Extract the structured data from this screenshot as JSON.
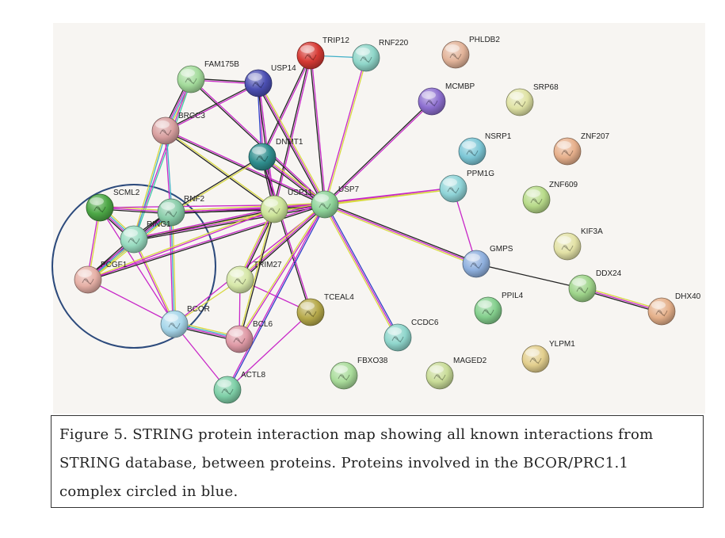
{
  "diagram": {
    "nodes": [
      {
        "id": "TRIP12",
        "label": "TRIP12",
        "color": "#d63a34"
      },
      {
        "id": "RNF220",
        "label": "RNF220",
        "color": "#8fd6c9"
      },
      {
        "id": "PHLDB2",
        "label": "PHLDB2",
        "color": "#e3b49a"
      },
      {
        "id": "FAM175B",
        "label": "FAM175B",
        "color": "#a4dc9c"
      },
      {
        "id": "USP14",
        "label": "USP14",
        "color": "#4b4fb2"
      },
      {
        "id": "MCMBP",
        "label": "MCMBP",
        "color": "#8d6fd0"
      },
      {
        "id": "SRP68",
        "label": "SRP68",
        "color": "#e0e3a5"
      },
      {
        "id": "BRCC3",
        "label": "BRCC3",
        "color": "#d9a0a0"
      },
      {
        "id": "DNMT1",
        "label": "DNMT1",
        "color": "#2f8e8e"
      },
      {
        "id": "NSRP1",
        "label": "NSRP1",
        "color": "#7dc7d6"
      },
      {
        "id": "ZNF207",
        "label": "ZNF207",
        "color": "#e7b08c"
      },
      {
        "id": "PPM1G",
        "label": "PPM1G",
        "color": "#8fd4d8"
      },
      {
        "id": "ZNF609",
        "label": "ZNF609",
        "color": "#b8db8a"
      },
      {
        "id": "SCML2",
        "label": "SCML2",
        "color": "#4da846"
      },
      {
        "id": "RNF2",
        "label": "RNF2",
        "color": "#88cca8"
      },
      {
        "id": "USP11",
        "label": "USP11",
        "color": "#cde59a"
      },
      {
        "id": "USP7",
        "label": "USP7",
        "color": "#8fd49a"
      },
      {
        "id": "RING1",
        "label": "RING1",
        "color": "#98dcc0"
      },
      {
        "id": "KIF3A",
        "label": "KIF3A",
        "color": "#e3e2a6"
      },
      {
        "id": "GMPS",
        "label": "GMPS",
        "color": "#8fb0de"
      },
      {
        "id": "PCGF1",
        "label": "PCGF1",
        "color": "#e6b0a6"
      },
      {
        "id": "TRIM27",
        "label": "TRIM27",
        "color": "#d7e8a9"
      },
      {
        "id": "DDX24",
        "label": "DDX24",
        "color": "#9ed48a"
      },
      {
        "id": "TCEAL4",
        "label": "TCEAL4",
        "color": "#b6a94a"
      },
      {
        "id": "DHX40",
        "label": "DHX40",
        "color": "#e5b08a"
      },
      {
        "id": "PPIL4",
        "label": "PPIL4",
        "color": "#85d08e"
      },
      {
        "id": "BCOR",
        "label": "BCOR",
        "color": "#a6d6ea"
      },
      {
        "id": "CCDC6",
        "label": "CCDC6",
        "color": "#8fd6cc"
      },
      {
        "id": "BCL6",
        "label": "BCL6",
        "color": "#df9aa6"
      },
      {
        "id": "YLPM1",
        "label": "YLPM1",
        "color": "#e3cf8e"
      },
      {
        "id": "FBXO38",
        "label": "FBXO38",
        "color": "#a9dc9a"
      },
      {
        "id": "MAGED2",
        "label": "MAGED2",
        "color": "#c9dc98"
      },
      {
        "id": "ACTL8",
        "label": "ACTL8",
        "color": "#7fd0a8"
      }
    ],
    "edges": [
      {
        "source": "TRIP12",
        "target": "RNF220",
        "colors": [
          "#40b0c8"
        ]
      },
      {
        "source": "TRIP12",
        "target": "USP7",
        "colors": [
          "#c828c8",
          "#222222"
        ]
      },
      {
        "source": "TRIP12",
        "target": "USP11",
        "colors": [
          "#c828c8",
          "#222222"
        ]
      },
      {
        "source": "TRIP12",
        "target": "DNMT1",
        "colors": [
          "#c828c8",
          "#222222"
        ]
      },
      {
        "source": "RNF220",
        "target": "USP7",
        "colors": [
          "#d8d840",
          "#c828c8"
        ]
      },
      {
        "source": "USP14",
        "target": "BRCC3",
        "colors": [
          "#c828c8",
          "#222222"
        ]
      },
      {
        "source": "USP14",
        "target": "DNMT1",
        "colors": [
          "#c828c8",
          "#3040c8"
        ]
      },
      {
        "source": "USP14",
        "target": "USP7",
        "colors": [
          "#d8d840",
          "#c828c8",
          "#222222"
        ]
      },
      {
        "source": "USP14",
        "target": "USP11",
        "colors": [
          "#c828c8",
          "#222222"
        ]
      },
      {
        "source": "USP14",
        "target": "FAM175B",
        "colors": [
          "#c828c8",
          "#222222"
        ]
      },
      {
        "source": "FAM175B",
        "target": "BRCC3",
        "colors": [
          "#d8d840",
          "#40b0c8",
          "#c828c8",
          "#222222"
        ]
      },
      {
        "source": "FAM175B",
        "target": "USP7",
        "colors": [
          "#c828c8",
          "#222222"
        ]
      },
      {
        "source": "FAM175B",
        "target": "RING1",
        "colors": [
          "#40c8a8",
          "#c828c8"
        ]
      },
      {
        "source": "BRCC3",
        "target": "USP11",
        "colors": [
          "#d8d840",
          "#222222"
        ]
      },
      {
        "source": "BRCC3",
        "target": "USP7",
        "colors": [
          "#c828c8",
          "#222222"
        ]
      },
      {
        "source": "BRCC3",
        "target": "RNF2",
        "colors": [
          "#40b0c8",
          "#c828c8"
        ]
      },
      {
        "source": "BRCC3",
        "target": "RING1",
        "colors": [
          "#40b0c8",
          "#d8d840"
        ]
      },
      {
        "source": "DNMT1",
        "target": "USP7",
        "colors": [
          "#d8d840",
          "#c828c8",
          "#222222"
        ]
      },
      {
        "source": "DNMT1",
        "target": "USP11",
        "colors": [
          "#c828c8",
          "#222222"
        ]
      },
      {
        "source": "DNMT1",
        "target": "RNF2",
        "colors": [
          "#d8d840",
          "#222222"
        ]
      },
      {
        "source": "DNMT1",
        "target": "TCEAL4",
        "colors": [
          "#c828c8",
          "#222222"
        ]
      },
      {
        "source": "MCMBP",
        "target": "USP7",
        "colors": [
          "#c828c8",
          "#222222"
        ]
      },
      {
        "source": "PPM1G",
        "target": "USP7",
        "colors": [
          "#d8d840",
          "#c828c8"
        ]
      },
      {
        "source": "PPM1G",
        "target": "USP11",
        "colors": [
          "#d8d840",
          "#c828c8"
        ]
      },
      {
        "source": "PPM1G",
        "target": "GMPS",
        "colors": [
          "#c828c8"
        ]
      },
      {
        "source": "GMPS",
        "target": "USP7",
        "colors": [
          "#d8d840",
          "#c828c8",
          "#222222"
        ]
      },
      {
        "source": "GMPS",
        "target": "DDX24",
        "colors": [
          "#222222"
        ]
      },
      {
        "source": "DDX24",
        "target": "DHX40",
        "colors": [
          "#d8d840",
          "#c828c8",
          "#222222"
        ]
      },
      {
        "source": "USP11",
        "target": "USP7",
        "colors": [
          "#d8d840",
          "#c828c8",
          "#222222"
        ]
      },
      {
        "source": "SCML2",
        "target": "RNF2",
        "colors": [
          "#d8d840",
          "#c828c8",
          "#222222"
        ]
      },
      {
        "source": "SCML2",
        "target": "RING1",
        "colors": [
          "#d8d840",
          "#40b0c8",
          "#c828c8",
          "#222222"
        ]
      },
      {
        "source": "SCML2",
        "target": "PCGF1",
        "colors": [
          "#d8d840",
          "#c828c8"
        ]
      },
      {
        "source": "SCML2",
        "target": "BCOR",
        "colors": [
          "#c828c8"
        ]
      },
      {
        "source": "SCML2",
        "target": "USP7",
        "colors": [
          "#c828c8"
        ]
      },
      {
        "source": "RNF2",
        "target": "RING1",
        "colors": [
          "#d8d840",
          "#40b0c8",
          "#c828c8",
          "#222222"
        ]
      },
      {
        "source": "RNF2",
        "target": "PCGF1",
        "colors": [
          "#d8d840",
          "#40b0c8",
          "#c828c8",
          "#222222"
        ]
      },
      {
        "source": "RNF2",
        "target": "BCOR",
        "colors": [
          "#d8d840",
          "#40b0c8",
          "#c828c8"
        ]
      },
      {
        "source": "RNF2",
        "target": "USP7",
        "colors": [
          "#d8d840",
          "#c828c8",
          "#222222"
        ]
      },
      {
        "source": "RNF2",
        "target": "USP11",
        "colors": [
          "#c828c8",
          "#222222"
        ]
      },
      {
        "source": "RING1",
        "target": "PCGF1",
        "colors": [
          "#d8d840",
          "#40b0c8",
          "#c828c8",
          "#222222"
        ]
      },
      {
        "source": "RING1",
        "target": "BCOR",
        "colors": [
          "#d8d840",
          "#c828c8"
        ]
      },
      {
        "source": "RING1",
        "target": "USP7",
        "colors": [
          "#d8d840",
          "#c828c8",
          "#222222"
        ]
      },
      {
        "source": "RING1",
        "target": "USP11",
        "colors": [
          "#c828c8",
          "#222222"
        ]
      },
      {
        "source": "PCGF1",
        "target": "BCOR",
        "colors": [
          "#c828c8"
        ]
      },
      {
        "source": "PCGF1",
        "target": "USP7",
        "colors": [
          "#c828c8",
          "#222222"
        ]
      },
      {
        "source": "PCGF1",
        "target": "USP11",
        "colors": [
          "#d8d840",
          "#c828c8"
        ]
      },
      {
        "source": "BCOR",
        "target": "BCL6",
        "colors": [
          "#d8d840",
          "#40b0c8",
          "#c828c8",
          "#222222"
        ]
      },
      {
        "source": "BCOR",
        "target": "ACTL8",
        "colors": [
          "#c828c8"
        ]
      },
      {
        "source": "BCOR",
        "target": "TRIM27",
        "colors": [
          "#d8d840"
        ]
      },
      {
        "source": "BCOR",
        "target": "USP7",
        "colors": [
          "#c828c8"
        ]
      },
      {
        "source": "TRIM27",
        "target": "USP7",
        "colors": [
          "#d8d840",
          "#c828c8",
          "#222222"
        ]
      },
      {
        "source": "TRIM27",
        "target": "USP11",
        "colors": [
          "#d8d840",
          "#c828c8",
          "#222222"
        ]
      },
      {
        "source": "TRIM27",
        "target": "TCEAL4",
        "colors": [
          "#c828c8"
        ]
      },
      {
        "source": "TRIM27",
        "target": "BCL6",
        "colors": [
          "#c828c8"
        ]
      },
      {
        "source": "TCEAL4",
        "target": "ACTL8",
        "colors": [
          "#c828c8"
        ]
      },
      {
        "source": "BCL6",
        "target": "USP7",
        "colors": [
          "#d8d840",
          "#c828c8"
        ]
      },
      {
        "source": "BCL6",
        "target": "USP11",
        "colors": [
          "#d8d840",
          "#222222"
        ]
      },
      {
        "source": "ACTL8",
        "target": "USP7",
        "colors": [
          "#c828c8",
          "#3040c8"
        ]
      },
      {
        "source": "CCDC6",
        "target": "USP7",
        "colors": [
          "#d8d840",
          "#c828c8",
          "#3040c8"
        ]
      }
    ],
    "complex_circle": {
      "color": "#2c4a7c"
    }
  },
  "caption": {
    "text": "Figure 5. STRING protein interaction map showing all known interactions from STRING database, between proteins. Proteins involved in the BCOR/PRC1.1 complex circled in blue."
  }
}
